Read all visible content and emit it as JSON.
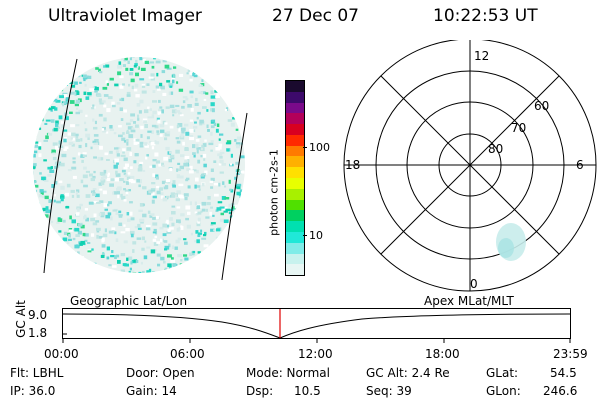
{
  "header": {
    "instrument": "Ultraviolet Imager",
    "date": "27 Dec 07",
    "time": "10:22:53 UT"
  },
  "colorbar": {
    "unit_label": "photon cm-2s-1",
    "ticks": [
      "100",
      "10"
    ],
    "colors": [
      "#1a0a2e",
      "#3d0a6b",
      "#7a0a8a",
      "#b3005a",
      "#d80020",
      "#ff2a00",
      "#ff7a00",
      "#ffb000",
      "#ffe000",
      "#e8ff00",
      "#a8f000",
      "#50e000",
      "#00d060",
      "#00e0b0",
      "#20e8d8",
      "#80ece8",
      "#c8f2ee",
      "#e8f6f4"
    ]
  },
  "polar_plot": {
    "mlt_labels": [
      "12",
      "18",
      "6",
      "0"
    ],
    "lat_labels": [
      "60",
      "70",
      "80"
    ]
  },
  "timeline": {
    "left_title": "Geographic Lat/Lon",
    "right_title": "Apex MLat/MLT",
    "axis_label": "GC Alt",
    "y_ticks": [
      "9.0",
      "1.8"
    ],
    "x_ticks": [
      "00:00",
      "06:00",
      "12:00",
      "18:00",
      "23:59"
    ],
    "current_time_marker_color": "#e00000"
  },
  "info": {
    "flt": "Flt: LBHL",
    "ip": "IP: 36.0",
    "door": "Door: Open",
    "gain": "Gain: 14",
    "mode": "Mode: Normal",
    "dsp_label": "Dsp:",
    "dsp_value": "10.5",
    "gcalt": "GC Alt: 2.4 Re",
    "seq": "Seq: 39",
    "glat_label": "GLat:",
    "glat_value": "54.5",
    "glon_label": "GLon:",
    "glon_value": "246.6"
  }
}
